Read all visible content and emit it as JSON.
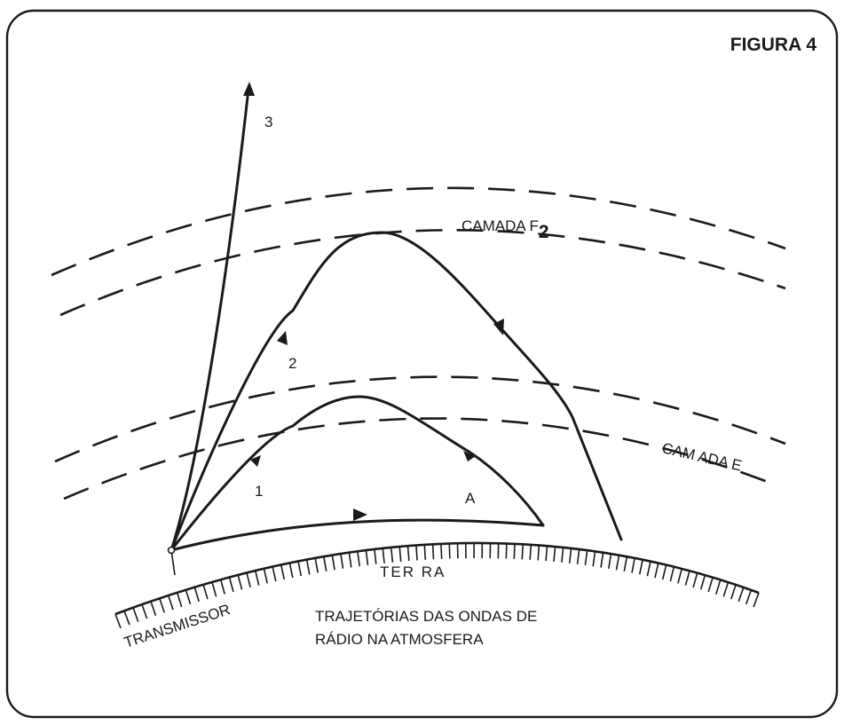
{
  "figure": {
    "title": "FIGURA 4",
    "ray_labels": {
      "ray3": "3",
      "ray2": "2",
      "ray1": "1",
      "rayA": "A"
    },
    "layers": {
      "f2_label": "CAMADA F",
      "f2_subscript": "2",
      "e_label": "CAM ADA E"
    },
    "ground": {
      "earth_label": "TER RA",
      "transmitter_label": "TRANSMISSOR"
    },
    "caption": {
      "line1": "TRAJETÓRIAS DAS ONDAS DE",
      "line2": "RÁDIO NA ATMOSFERA"
    }
  }
}
